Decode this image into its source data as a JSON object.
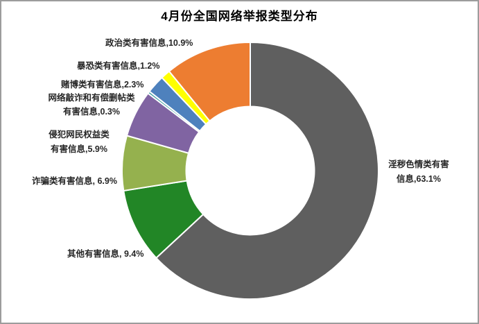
{
  "title": "4月份全国网络举报类型分布",
  "chart_data": {
    "type": "pie",
    "subtype": "donut",
    "title": "4月份全国网络举报类型分布",
    "unit": "percent",
    "start_angle_deg": 0,
    "direction": "clockwise",
    "hole_ratio": 0.5,
    "legend_position": "none",
    "slices": [
      {
        "label": "淫秽色情类有害信息",
        "value": 63.1,
        "color": "#5F5F5F",
        "label_lines": [
          "淫秽色情类有害",
          "信息,63.1%"
        ]
      },
      {
        "label": "其他有害信息",
        "value": 9.4,
        "color": "#228626",
        "label_lines": [
          "其他有害信息, 9.4%"
        ]
      },
      {
        "label": "诈骗类有害信息",
        "value": 6.9,
        "color": "#95B14E",
        "label_lines": [
          "诈骗类有害信息, 6.9%"
        ]
      },
      {
        "label": "侵犯网民权益类有害信息",
        "value": 5.9,
        "color": "#8064A2",
        "label_lines": [
          "侵犯网民权益类",
          "有害信息,5.9%"
        ]
      },
      {
        "label": "网络敲诈和有偿删帖类有害信息",
        "value": 0.3,
        "color": "#37999C",
        "label_lines": [
          "网络敲诈和有偿删帖类",
          "有害信息,0.3%"
        ]
      },
      {
        "label": "赌博类有害信息",
        "value": 2.3,
        "color": "#4E81BD",
        "label_lines": [
          "赌博类有害信息,2.3%"
        ]
      },
      {
        "label": "暴恐类有害信息",
        "value": 1.2,
        "color": "#FFFF00",
        "label_lines": [
          "暴恐类有害信息,1.2%"
        ]
      },
      {
        "label": "政治类有害信息",
        "value": 10.9,
        "color": "#ED7D31",
        "label_lines": [
          "政治类有害信息,10.9%"
        ]
      }
    ]
  }
}
